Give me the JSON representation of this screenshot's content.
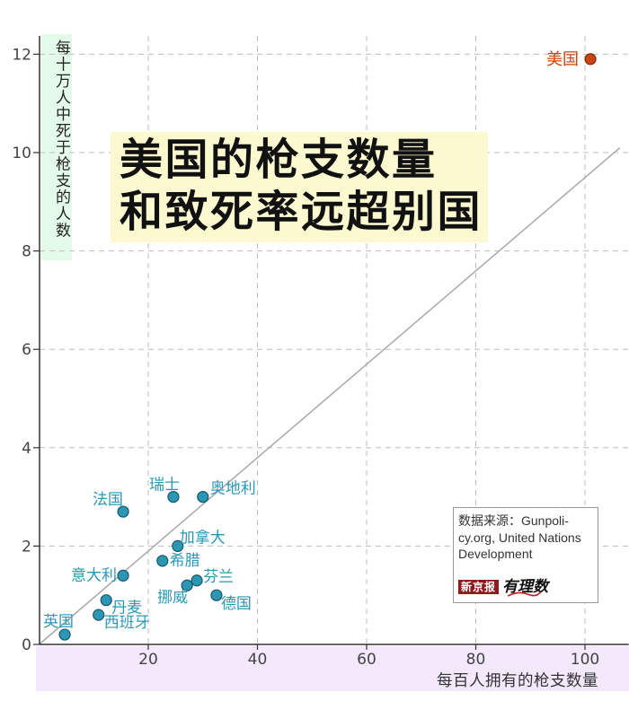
{
  "chart_data": {
    "type": "scatter",
    "title_lines": [
      "美国的枪支数量",
      "和致死率远超别国"
    ],
    "xlabel": "每百人拥有的枪支数量",
    "ylabel": "每十万人中死于枪支的人数",
    "xlim": [
      0,
      108
    ],
    "ylim": [
      0,
      12
    ],
    "xticks": [
      20,
      40,
      60,
      80,
      100
    ],
    "yticks": [
      0,
      2,
      4,
      6,
      8,
      10,
      12
    ],
    "grid": true,
    "points": [
      {
        "label": "美国",
        "x": 101,
        "y": 11.9,
        "highlight": true
      },
      {
        "label": "瑞士",
        "x": 24.6,
        "y": 3.0
      },
      {
        "label": "奥地利",
        "x": 30.0,
        "y": 3.0
      },
      {
        "label": "法国",
        "x": 15.4,
        "y": 2.7
      },
      {
        "label": "加拿大",
        "x": 25.4,
        "y": 2.0
      },
      {
        "label": "希腊",
        "x": 22.6,
        "y": 1.7
      },
      {
        "label": "意大利",
        "x": 15.4,
        "y": 1.4
      },
      {
        "label": "芬兰",
        "x": 28.9,
        "y": 1.3
      },
      {
        "label": "挪威",
        "x": 27.1,
        "y": 1.2
      },
      {
        "label": "德国",
        "x": 32.5,
        "y": 1.0
      },
      {
        "label": "丹麦",
        "x": 12.3,
        "y": 0.9
      },
      {
        "label": "西班牙",
        "x": 10.9,
        "y": 0.6
      },
      {
        "label": "英国",
        "x": 4.7,
        "y": 0.2
      }
    ],
    "reference_line": {
      "from": [
        0,
        0
      ],
      "to": [
        106.4,
        10.1
      ]
    }
  },
  "source": {
    "lines": [
      "数据来源：Gunpoli-",
      "cy.org, United Nations",
      "Development"
    ]
  },
  "logo": {
    "brand": "新京报",
    "column": "有理数"
  },
  "colors": {
    "point": "#2b97b5",
    "point_stroke": "#1d5566",
    "highlight": "#c9450f",
    "highlight_stroke": "#7a2a05",
    "label": "#2b97b5",
    "title_bg": "#fcf9d0",
    "y_band": "#e5fbea",
    "x_band": "#f3e8fc",
    "grid": "#bdbdbd",
    "reference_line": "#a9a9a9",
    "axis": "#333333",
    "tick_text": "#444444"
  }
}
